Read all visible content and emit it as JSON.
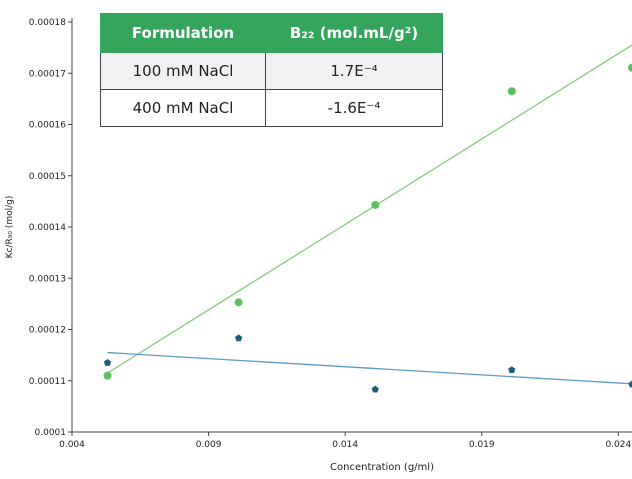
{
  "chart_data": {
    "type": "scatter",
    "xlabel": "Concentration (g/ml)",
    "ylabel": "Kc/R₉₀  (mol/g)",
    "xlim": [
      0.004,
      0.0245
    ],
    "ylim": [
      0.0001,
      0.00018
    ],
    "x_ticks": [
      "0.004",
      "0.009",
      "0.014",
      "0.019",
      "0.024"
    ],
    "y_ticks": [
      "0.0001",
      "0.00011",
      "0.00012",
      "0.00013",
      "0.00014",
      "0.00015",
      "0.00016",
      "0.00017",
      "0.00018"
    ],
    "grid": false,
    "series": [
      {
        "color": "#5cbf60",
        "marker": "circle",
        "points": [
          {
            "x": 0.0053,
            "y": 0.000111
          },
          {
            "x": 0.0101,
            "y": 0.0001253
          },
          {
            "x": 0.0151,
            "y": 0.0001443
          },
          {
            "x": 0.0201,
            "y": 0.0001665
          },
          {
            "x": 0.0245,
            "y": 0.0001711
          }
        ],
        "trendline": [
          {
            "x": 0.0053,
            "y": 0.0001115
          },
          {
            "x": 0.0245,
            "y": 0.0001755
          }
        ]
      },
      {
        "color": "#1f5f7a",
        "marker": "pentagon",
        "points": [
          {
            "x": 0.0053,
            "y": 0.0001135
          },
          {
            "x": 0.0101,
            "y": 0.0001183
          },
          {
            "x": 0.0151,
            "y": 0.0001083
          },
          {
            "x": 0.0201,
            "y": 0.0001121
          },
          {
            "x": 0.0245,
            "y": 0.0001093
          }
        ],
        "trendline": [
          {
            "x": 0.0053,
            "y": 0.0001155
          },
          {
            "x": 0.0245,
            "y": 0.0001094
          }
        ]
      }
    ],
    "trend_color_1": "#7fd07a",
    "trend_color_2": "#5b9bc0"
  },
  "legend_table": {
    "headers": [
      "Formulation",
      "B₂₂ (mol.mL/g²)"
    ],
    "rows": [
      [
        "100 mM NaCl",
        "1.7E⁻⁴"
      ],
      [
        "400 mM NaCl",
        "-1.6E⁻⁴"
      ]
    ],
    "header_color": "#35a55d"
  }
}
